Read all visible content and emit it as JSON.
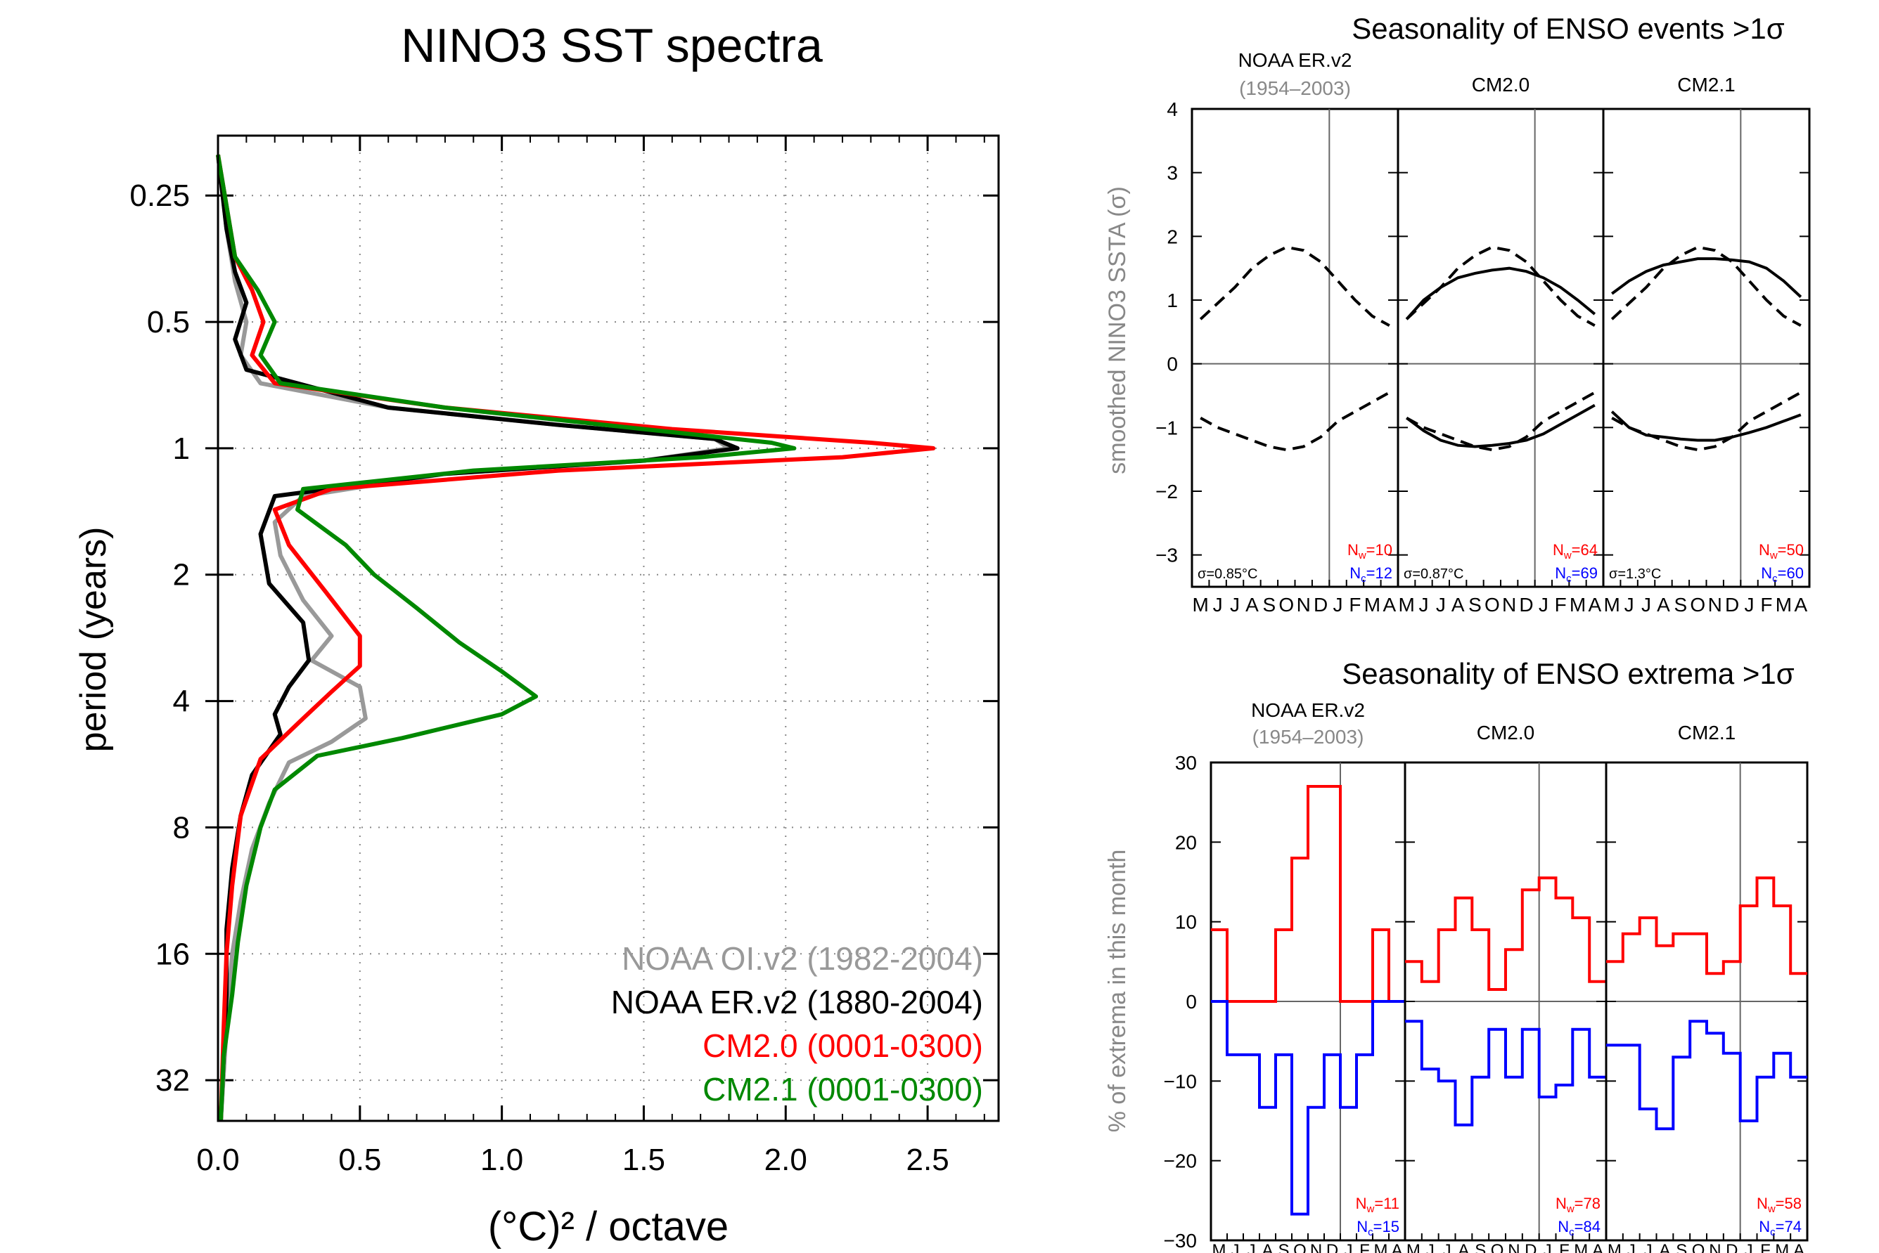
{
  "chart_data": [
    {
      "type": "line",
      "title": "NINO3 SST spectra",
      "xlabel": "(°C)² / octave",
      "ylabel": "period (years)",
      "xlim": [
        0.0,
        2.75
      ],
      "yscale": "log2",
      "ylim": [
        0.18,
        40
      ],
      "xticks": [
        "0.0",
        "0.5",
        "1.0",
        "1.5",
        "2.0",
        "2.5"
      ],
      "yticks": [
        "0.25",
        "0.5",
        "1",
        "2",
        "4",
        "8",
        "16",
        "32"
      ],
      "legend_position": "bottom-right",
      "grid": true,
      "series": [
        {
          "name": "NOAA OI.v2 (1982-2004)",
          "color": "#999999",
          "points": [
            [
              0.0,
              0.2
            ],
            [
              0.03,
              0.3
            ],
            [
              0.06,
              0.4
            ],
            [
              0.1,
              0.5
            ],
            [
              0.08,
              0.6
            ],
            [
              0.15,
              0.7
            ],
            [
              0.6,
              0.8
            ],
            [
              1.2,
              0.88
            ],
            [
              1.75,
              0.95
            ],
            [
              1.8,
              1.0
            ],
            [
              1.5,
              1.07
            ],
            [
              0.8,
              1.15
            ],
            [
              0.3,
              1.3
            ],
            [
              0.2,
              1.5
            ],
            [
              0.22,
              1.8
            ],
            [
              0.3,
              2.3
            ],
            [
              0.4,
              2.8
            ],
            [
              0.33,
              3.2
            ],
            [
              0.5,
              3.7
            ],
            [
              0.52,
              4.4
            ],
            [
              0.4,
              5.0
            ],
            [
              0.25,
              5.6
            ],
            [
              0.18,
              7
            ],
            [
              0.12,
              9
            ],
            [
              0.08,
              12
            ],
            [
              0.05,
              16
            ],
            [
              0.03,
              24
            ],
            [
              0.01,
              40
            ]
          ]
        },
        {
          "name": "NOAA ER.v2 (1880-2004)",
          "color": "#000000",
          "points": [
            [
              0.0,
              0.2
            ],
            [
              0.03,
              0.3
            ],
            [
              0.06,
              0.38
            ],
            [
              0.1,
              0.45
            ],
            [
              0.06,
              0.55
            ],
            [
              0.1,
              0.65
            ],
            [
              0.6,
              0.8
            ],
            [
              1.2,
              0.88
            ],
            [
              1.75,
              0.95
            ],
            [
              1.83,
              1.0
            ],
            [
              1.5,
              1.07
            ],
            [
              0.8,
              1.15
            ],
            [
              0.2,
              1.3
            ],
            [
              0.15,
              1.6
            ],
            [
              0.18,
              2.1
            ],
            [
              0.3,
              2.6
            ],
            [
              0.32,
              3.2
            ],
            [
              0.25,
              3.7
            ],
            [
              0.2,
              4.3
            ],
            [
              0.22,
              4.8
            ],
            [
              0.12,
              6
            ],
            [
              0.08,
              7.5
            ],
            [
              0.05,
              10
            ],
            [
              0.03,
              14
            ],
            [
              0.03,
              20
            ],
            [
              0.02,
              28
            ],
            [
              0.01,
              40
            ]
          ]
        },
        {
          "name": "CM2.0 (0001-0300)",
          "color": "#ff0000",
          "points": [
            [
              0.0,
              0.2
            ],
            [
              0.06,
              0.35
            ],
            [
              0.12,
              0.42
            ],
            [
              0.16,
              0.5
            ],
            [
              0.12,
              0.6
            ],
            [
              0.2,
              0.7
            ],
            [
              0.8,
              0.8
            ],
            [
              1.6,
              0.9
            ],
            [
              2.3,
              0.97
            ],
            [
              2.52,
              1.0
            ],
            [
              2.2,
              1.05
            ],
            [
              1.2,
              1.13
            ],
            [
              0.4,
              1.25
            ],
            [
              0.2,
              1.4
            ],
            [
              0.25,
              1.7
            ],
            [
              0.38,
              2.2
            ],
            [
              0.5,
              2.8
            ],
            [
              0.5,
              3.3
            ],
            [
              0.4,
              3.8
            ],
            [
              0.3,
              4.4
            ],
            [
              0.15,
              5.5
            ],
            [
              0.08,
              7.5
            ],
            [
              0.05,
              11
            ],
            [
              0.03,
              16
            ],
            [
              0.02,
              24
            ],
            [
              0.01,
              40
            ]
          ]
        },
        {
          "name": "CM2.1 (0001-0300)",
          "color": "#008800",
          "points": [
            [
              0.0,
              0.2
            ],
            [
              0.06,
              0.35
            ],
            [
              0.14,
              0.42
            ],
            [
              0.2,
              0.5
            ],
            [
              0.15,
              0.6
            ],
            [
              0.22,
              0.7
            ],
            [
              0.8,
              0.8
            ],
            [
              1.5,
              0.9
            ],
            [
              1.95,
              0.97
            ],
            [
              2.03,
              1.0
            ],
            [
              1.7,
              1.05
            ],
            [
              0.9,
              1.13
            ],
            [
              0.3,
              1.25
            ],
            [
              0.28,
              1.4
            ],
            [
              0.45,
              1.7
            ],
            [
              0.55,
              2.0
            ],
            [
              0.7,
              2.4
            ],
            [
              0.85,
              2.9
            ],
            [
              1.0,
              3.4
            ],
            [
              1.12,
              3.9
            ],
            [
              1.0,
              4.3
            ],
            [
              0.65,
              4.9
            ],
            [
              0.35,
              5.4
            ],
            [
              0.2,
              6.5
            ],
            [
              0.15,
              8
            ],
            [
              0.1,
              11
            ],
            [
              0.07,
              15
            ],
            [
              0.05,
              20
            ],
            [
              0.02,
              28
            ],
            [
              0.01,
              40
            ]
          ]
        }
      ]
    },
    {
      "type": "line",
      "title": "Seasonality of ENSO events >1σ",
      "ylabel": "smoothed NINO3 SSTA (σ)",
      "ylim": [
        -3.5,
        4
      ],
      "yticks": [
        "4",
        "3",
        "2",
        "1",
        "0",
        "−1",
        "−2",
        "−3"
      ],
      "months": [
        "M",
        "J",
        "J",
        "A",
        "S",
        "O",
        "N",
        "D",
        "J",
        "F",
        "M",
        "A"
      ],
      "panels": [
        {
          "title": "NOAA ER.v2",
          "subtitle": "(1954–2003)",
          "sigma": "σ=0.85°C",
          "nw_label": "N",
          "nw_sub": "w",
          "nw_value": "=10",
          "nc_label": "N",
          "nc_sub": "c",
          "nc_value": "=12",
          "dashed_warm": [
            0.7,
            0.95,
            1.2,
            1.5,
            1.7,
            1.83,
            1.78,
            1.6,
            1.3,
            1.0,
            0.75,
            0.6
          ],
          "dashed_cold": [
            -0.85,
            -1.0,
            -1.1,
            -1.2,
            -1.3,
            -1.35,
            -1.3,
            -1.15,
            -0.9,
            -0.75,
            -0.6,
            -0.45
          ],
          "mean_warm": null,
          "mean_cold": null
        },
        {
          "title": "CM2.0",
          "subtitle": "",
          "sigma": "σ=0.87°C",
          "nw_label": "N",
          "nw_sub": "w",
          "nw_value": "=64",
          "nc_label": "N",
          "nc_sub": "c",
          "nc_value": "=69",
          "dashed_warm": [
            0.7,
            0.95,
            1.2,
            1.5,
            1.7,
            1.83,
            1.78,
            1.6,
            1.3,
            1.0,
            0.75,
            0.6
          ],
          "dashed_cold": [
            -0.85,
            -1.0,
            -1.1,
            -1.2,
            -1.3,
            -1.35,
            -1.3,
            -1.15,
            -0.9,
            -0.75,
            -0.6,
            -0.45
          ],
          "mean_warm": [
            0.7,
            1.0,
            1.2,
            1.35,
            1.42,
            1.47,
            1.5,
            1.45,
            1.35,
            1.2,
            1.0,
            0.78
          ],
          "mean_cold": [
            -0.85,
            -1.05,
            -1.2,
            -1.28,
            -1.3,
            -1.28,
            -1.25,
            -1.2,
            -1.1,
            -0.95,
            -0.8,
            -0.65
          ]
        },
        {
          "title": "CM2.1",
          "subtitle": "",
          "sigma": "σ=1.3°C",
          "nw_label": "N",
          "nw_sub": "w",
          "nw_value": "=50",
          "nc_label": "N",
          "nc_sub": "c",
          "nc_value": "=60",
          "dashed_warm": [
            0.7,
            0.95,
            1.2,
            1.5,
            1.7,
            1.83,
            1.78,
            1.6,
            1.3,
            1.0,
            0.75,
            0.6
          ],
          "dashed_cold": [
            -0.85,
            -1.0,
            -1.1,
            -1.2,
            -1.3,
            -1.35,
            -1.3,
            -1.15,
            -0.9,
            -0.75,
            -0.6,
            -0.45
          ],
          "mean_warm": [
            1.1,
            1.3,
            1.45,
            1.55,
            1.6,
            1.65,
            1.65,
            1.63,
            1.6,
            1.5,
            1.3,
            1.05
          ],
          "mean_cold": [
            -0.75,
            -1.0,
            -1.12,
            -1.15,
            -1.18,
            -1.2,
            -1.2,
            -1.15,
            -1.08,
            -1.0,
            -0.9,
            -0.8
          ]
        }
      ]
    },
    {
      "type": "bar",
      "title": "Seasonality of ENSO extrema >1σ",
      "ylabel": "% of extrema in this month",
      "ylim": [
        -30,
        30
      ],
      "yticks": [
        "30",
        "20",
        "10",
        "0",
        "−10",
        "−20",
        "−30"
      ],
      "months": [
        "M",
        "J",
        "J",
        "A",
        "S",
        "O",
        "N",
        "D",
        "J",
        "F",
        "M",
        "A"
      ],
      "panels": [
        {
          "title": "NOAA ER.v2",
          "subtitle": "(1954–2003)",
          "nw_label": "N",
          "nw_sub": "w",
          "nw_value": "=11",
          "nc_label": "N",
          "nc_sub": "c",
          "nc_value": "=15",
          "warm": [
            9,
            0,
            0,
            0,
            9,
            18,
            27,
            27,
            0,
            0,
            9,
            0
          ],
          "cold": [
            0,
            -6.7,
            -6.7,
            -13.3,
            -6.7,
            -26.7,
            -13.3,
            -6.7,
            -13.3,
            -6.7,
            0,
            0
          ]
        },
        {
          "title": "CM2.0",
          "subtitle": "",
          "nw_label": "N",
          "nw_sub": "w",
          "nw_value": "=78",
          "nc_label": "N",
          "nc_sub": "c",
          "nc_value": "=84",
          "warm": [
            5,
            2.5,
            9,
            13,
            9,
            1.5,
            6.5,
            14,
            15.5,
            13,
            10.5,
            2.5
          ],
          "cold": [
            -2.5,
            -8.5,
            -10,
            -15.5,
            -9.5,
            -3.5,
            -9.5,
            -3.5,
            -12,
            -10.5,
            -3.5,
            -9.5
          ]
        },
        {
          "title": "CM2.1",
          "subtitle": "",
          "nw_label": "N",
          "nw_sub": "w",
          "nw_value": "=58",
          "nc_label": "N",
          "nc_sub": "c",
          "nc_value": "=74",
          "warm": [
            5,
            8.5,
            10.5,
            7,
            8.5,
            8.5,
            3.5,
            5,
            12,
            15.5,
            12,
            3.5
          ],
          "cold": [
            -5.5,
            -5.5,
            -13.5,
            -16,
            -7,
            -2.5,
            -4,
            -6.5,
            -15,
            -9.5,
            -6.5,
            -9.5
          ]
        }
      ]
    }
  ]
}
